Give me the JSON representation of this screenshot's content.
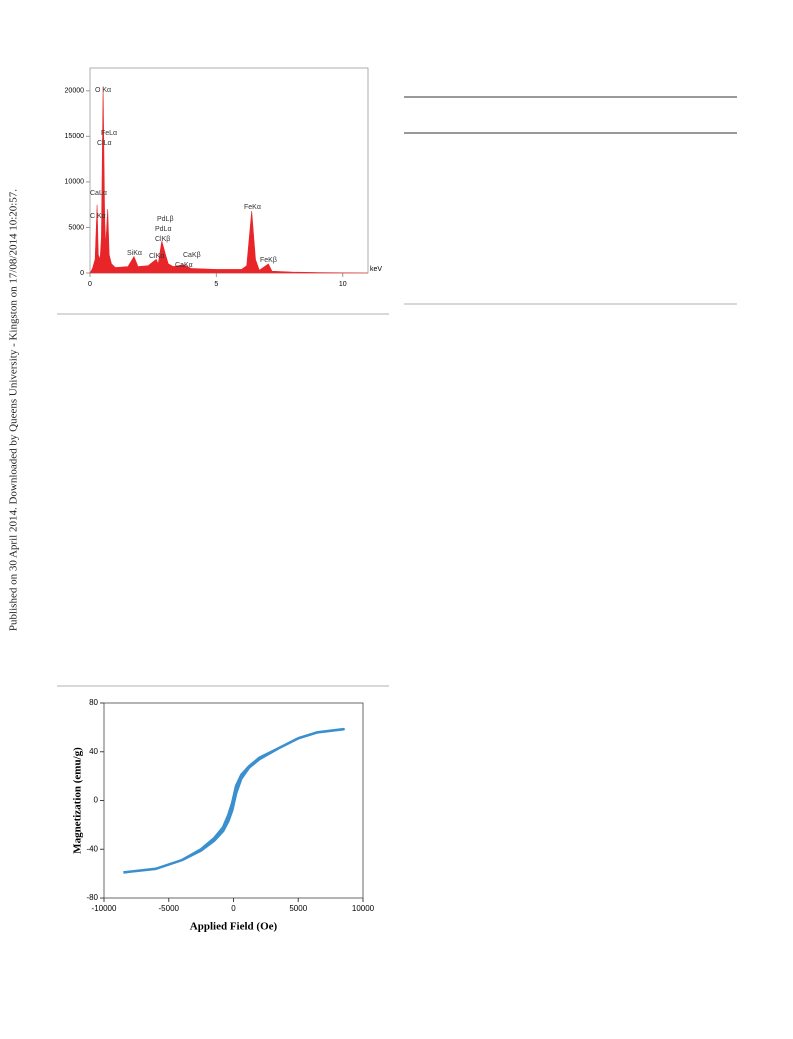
{
  "side_note": "Published on 30 April 2014. Downloaded by Queens University - Kingston on 17/08/2014 10:20:57.",
  "chart_data": [
    {
      "type": "area",
      "x_label": "keV",
      "x": [
        0,
        0.1,
        0.2,
        0.28,
        0.33,
        0.4,
        0.45,
        0.52,
        0.58,
        0.62,
        0.7,
        0.76,
        0.85,
        1.0,
        1.5,
        1.74,
        1.9,
        2.3,
        2.62,
        2.7,
        2.84,
        2.99,
        3.1,
        3.3,
        3.69,
        4.0,
        5.0,
        6.0,
        6.2,
        6.4,
        6.55,
        6.7,
        7.06,
        7.2,
        8,
        9,
        11
      ],
      "values": [
        0,
        500,
        1500,
        7500,
        2000,
        1500,
        4000,
        20500,
        6000,
        3000,
        7000,
        2000,
        1000,
        600,
        700,
        1800,
        700,
        800,
        1500,
        1000,
        3500,
        2000,
        1000,
        700,
        900,
        500,
        400,
        400,
        800,
        6800,
        1500,
        300,
        1000,
        200,
        100,
        50,
        0
      ],
      "color": "#e8262a",
      "xlim": [
        0,
        11
      ],
      "ylim": [
        0,
        22500
      ],
      "xticks": [
        0,
        5,
        10
      ],
      "yticks": [
        0,
        5000,
        10000,
        15000,
        20000
      ],
      "annotations": [
        "O Kα",
        "FeLα",
        "ClLα",
        "CaLα",
        "C Kα",
        "SiKα",
        "ClKα",
        "PdLβ",
        "PdLα",
        "ClKβ",
        "CaKβ",
        "CaKα",
        "FeKα",
        "FeKβ"
      ]
    },
    {
      "type": "line",
      "x_label": "Applied Field (Oe)",
      "y_label": "Magnetization (emu/g)",
      "x": [
        -8500,
        -6000,
        -4000,
        -2500,
        -1500,
        -800,
        -400,
        -100,
        200,
        600,
        1200,
        2000,
        3500,
        5000,
        6500,
        8500,
        6500,
        5000,
        3500,
        2000,
        1200,
        600,
        200,
        -100,
        -400,
        -800,
        -1500,
        -2500,
        -4000,
        -6000,
        -8500
      ],
      "values": [
        -59,
        -56,
        -49,
        -41,
        -33,
        -25,
        -17,
        -8,
        6,
        18,
        27,
        34,
        43,
        51,
        56,
        58.5,
        56,
        51,
        43,
        35,
        28,
        21,
        12,
        -2,
        -12,
        -22,
        -31,
        -40,
        -49,
        -56,
        -59
      ],
      "color": "#3a8fcf",
      "xlim": [
        -10000,
        10000
      ],
      "ylim": [
        -80,
        80
      ],
      "xticks": [
        -10000,
        -5000,
        0,
        5000,
        10000
      ],
      "yticks": [
        -80,
        -40,
        0,
        40,
        80
      ]
    }
  ]
}
